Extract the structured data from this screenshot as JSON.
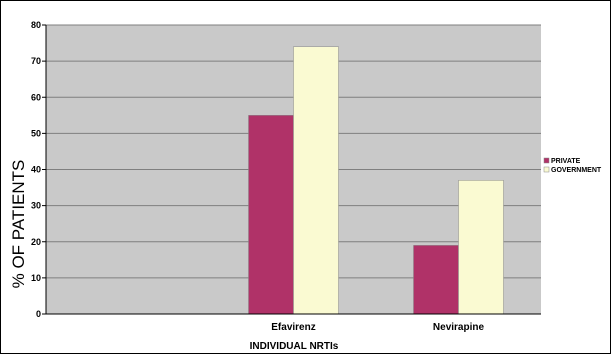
{
  "chart_data": {
    "type": "bar",
    "categories": [
      "",
      "Efavirenz",
      "Nevirapine"
    ],
    "series": [
      {
        "name": "PRIVATE",
        "values": [
          null,
          55,
          19
        ],
        "color": "#b03268"
      },
      {
        "name": "GOVERNMENT",
        "values": [
          null,
          74,
          37
        ],
        "color": "#fafad2"
      }
    ],
    "xlabel": "INDIVIDUAL NRTIs",
    "ylabel": "% OF PATIENTS",
    "ylim": [
      0,
      80
    ],
    "yticks": [
      0,
      10,
      20,
      30,
      40,
      50,
      60,
      70,
      80
    ],
    "grid": true,
    "legend": "right",
    "plot_background": "#c9c9c9",
    "gridline_color": "#7f7f7f"
  }
}
